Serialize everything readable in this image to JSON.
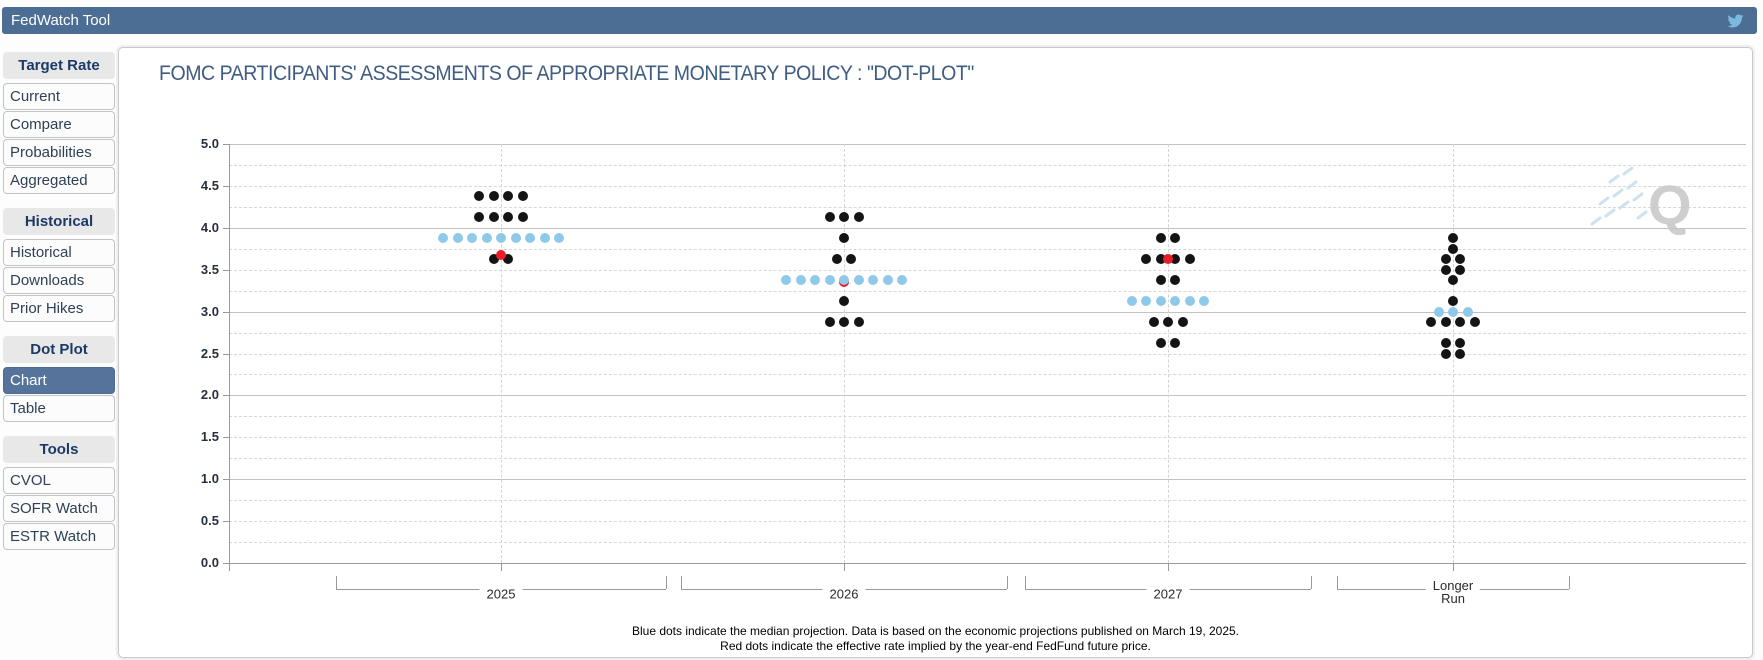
{
  "topbar": {
    "title": "FedWatch Tool",
    "icon": "twitter-bird-icon",
    "bg_color": "#4c6d94",
    "icon_color": "#7cb9de"
  },
  "sidebar": {
    "sections": [
      {
        "header": "Target Rate",
        "items": [
          "Current",
          "Compare",
          "Probabilities",
          "Aggregated"
        ],
        "selected": ""
      },
      {
        "header": "Historical",
        "items": [
          "Historical",
          "Downloads",
          "Prior Hikes"
        ],
        "selected": ""
      },
      {
        "header": "Dot Plot",
        "items": [
          "Chart",
          "Table"
        ],
        "selected": "Chart"
      },
      {
        "header": "Tools",
        "items": [
          "CVOL",
          "SOFR Watch",
          "ESTR Watch"
        ],
        "selected": ""
      }
    ]
  },
  "chart_data": {
    "type": "scatter",
    "title": "FOMC PARTICIPANTS' ASSESSMENTS OF APPROPRIATE MONETARY POLICY : \"DOT-PLOT\"",
    "ylim": [
      0.0,
      5.0
    ],
    "ytick_step": 0.5,
    "minor_grid_step": 0.25,
    "grid": "on",
    "colors": {
      "projection_dot": "#141414",
      "median_dot": "#8fc9ea",
      "fedfund_dot": "#ec1c24",
      "title_color": "#3f5c82"
    },
    "columns": [
      {
        "label": "2025",
        "label_lines": [
          "2025"
        ],
        "dots": [
          {
            "rate": 4.375,
            "count": 4,
            "type": "projection"
          },
          {
            "rate": 4.125,
            "count": 4,
            "type": "projection"
          },
          {
            "rate": 3.875,
            "count": 9,
            "type": "median"
          },
          {
            "rate": 3.625,
            "count": 2,
            "type": "projection"
          }
        ],
        "red_dot_rate": 3.67,
        "red_dot_layer": "front"
      },
      {
        "label": "2026",
        "label_lines": [
          "2026"
        ],
        "dots": [
          {
            "rate": 4.125,
            "count": 3,
            "type": "projection"
          },
          {
            "rate": 3.875,
            "count": 1,
            "type": "projection"
          },
          {
            "rate": 3.625,
            "count": 2,
            "type": "projection"
          },
          {
            "rate": 3.375,
            "count": 9,
            "type": "median"
          },
          {
            "rate": 3.125,
            "count": 1,
            "type": "projection"
          },
          {
            "rate": 2.875,
            "count": 3,
            "type": "projection"
          }
        ],
        "red_dot_rate": 3.35,
        "red_dot_layer": "back"
      },
      {
        "label": "2027",
        "label_lines": [
          "2027"
        ],
        "dots": [
          {
            "rate": 3.875,
            "count": 2,
            "type": "projection"
          },
          {
            "rate": 3.625,
            "count": 4,
            "type": "projection"
          },
          {
            "rate": 3.375,
            "count": 2,
            "type": "projection"
          },
          {
            "rate": 3.125,
            "count": 6,
            "type": "median"
          },
          {
            "rate": 2.875,
            "count": 3,
            "type": "projection"
          },
          {
            "rate": 2.625,
            "count": 2,
            "type": "projection"
          }
        ],
        "red_dot_rate": 3.625,
        "red_dot_layer": "front"
      },
      {
        "label": "Longer Run",
        "label_lines": [
          "Longer",
          "Run"
        ],
        "dots": [
          {
            "rate": 3.875,
            "count": 1,
            "type": "projection"
          },
          {
            "rate": 3.75,
            "count": 1,
            "type": "projection"
          },
          {
            "rate": 3.625,
            "count": 2,
            "type": "projection"
          },
          {
            "rate": 3.5,
            "count": 2,
            "type": "projection"
          },
          {
            "rate": 3.375,
            "count": 1,
            "type": "projection"
          },
          {
            "rate": 3.125,
            "count": 1,
            "type": "projection"
          },
          {
            "rate": 3.0,
            "count": 3,
            "type": "median"
          },
          {
            "rate": 2.875,
            "count": 4,
            "type": "projection"
          },
          {
            "rate": 2.625,
            "count": 2,
            "type": "projection"
          },
          {
            "rate": 2.5,
            "count": 2,
            "type": "projection"
          }
        ],
        "red_dot_rate": null,
        "red_dot_layer": "front"
      }
    ],
    "footnote_line1": "Blue dots indicate the median projection. Data is based on the economic projections published on March 19, 2025.",
    "footnote_line2": "Red dots indicate the effective rate implied by the year-end FedFund future price.",
    "watermark_letter": "Q"
  }
}
